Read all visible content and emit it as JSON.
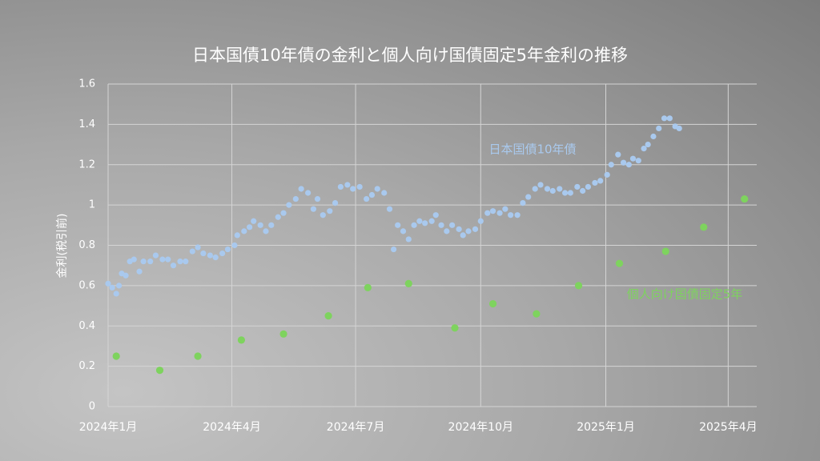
{
  "chart_data": {
    "type": "scatter",
    "title": "日本国債10年債の金利と個人向け国債固定5年金利の推移",
    "y_label": "金利(税引前)",
    "xlim": [
      0,
      477
    ],
    "ylim": [
      0,
      1.6
    ],
    "xticks": [
      {
        "value": 0,
        "label": "2024年1月"
      },
      {
        "value": 91,
        "label": "2024年4月"
      },
      {
        "value": 182,
        "label": "2024年7月"
      },
      {
        "value": 274,
        "label": "2024年10月"
      },
      {
        "value": 366,
        "label": "2025年1月"
      },
      {
        "value": 456,
        "label": "2025年4月"
      }
    ],
    "yticks": [
      0,
      0.2,
      0.4,
      0.6,
      0.8,
      1,
      1.2,
      1.4,
      1.6
    ],
    "grid": true,
    "series": [
      {
        "name": "日本国債10年債",
        "color": "#a9c9ee",
        "x": [
          0,
          3,
          6,
          8,
          10,
          13,
          16,
          19,
          23,
          26,
          31,
          35,
          40,
          44,
          48,
          53,
          57,
          62,
          66,
          70,
          75,
          79,
          84,
          88,
          93,
          95,
          100,
          104,
          107,
          112,
          116,
          120,
          125,
          129,
          133,
          138,
          142,
          147,
          151,
          154,
          158,
          163,
          167,
          171,
          176,
          180,
          185,
          190,
          194,
          198,
          203,
          207,
          210,
          213,
          217,
          221,
          225,
          229,
          233,
          238,
          241,
          245,
          249,
          253,
          258,
          261,
          265,
          270,
          274,
          279,
          283,
          288,
          292,
          296,
          301,
          305,
          309,
          314,
          318,
          323,
          327,
          332,
          336,
          340,
          345,
          349,
          353,
          358,
          362,
          367,
          370,
          375,
          379,
          383,
          386,
          390,
          394,
          397,
          401,
          405,
          409,
          413,
          417,
          420
        ],
        "values": [
          0.61,
          0.59,
          0.56,
          0.6,
          0.66,
          0.65,
          0.72,
          0.73,
          0.67,
          0.72,
          0.72,
          0.75,
          0.73,
          0.73,
          0.7,
          0.72,
          0.72,
          0.77,
          0.79,
          0.76,
          0.75,
          0.74,
          0.76,
          0.78,
          0.8,
          0.85,
          0.87,
          0.89,
          0.92,
          0.9,
          0.87,
          0.9,
          0.94,
          0.96,
          1,
          1.03,
          1.08,
          1.06,
          0.98,
          1.03,
          0.95,
          0.97,
          1.01,
          1.09,
          1.1,
          1.08,
          1.09,
          1.03,
          1.05,
          1.08,
          1.06,
          0.98,
          0.78,
          0.9,
          0.87,
          0.83,
          0.9,
          0.92,
          0.91,
          0.92,
          0.95,
          0.9,
          0.87,
          0.9,
          0.88,
          0.85,
          0.87,
          0.88,
          0.92,
          0.96,
          0.97,
          0.96,
          0.98,
          0.95,
          0.95,
          1.01,
          1.04,
          1.08,
          1.1,
          1.08,
          1.07,
          1.08,
          1.06,
          1.06,
          1.09,
          1.07,
          1.09,
          1.11,
          1.12,
          1.15,
          1.2,
          1.25,
          1.21,
          1.2,
          1.23,
          1.22,
          1.28,
          1.3,
          1.34,
          1.38,
          1.43,
          1.43,
          1.39,
          1.38
        ]
      },
      {
        "name": "個人向け国債固定5年",
        "color": "#7ed35e",
        "x": [
          6,
          38,
          66,
          98,
          129,
          162,
          191,
          221,
          255,
          283,
          315,
          346,
          376,
          410,
          438,
          468
        ],
        "values": [
          0.25,
          0.18,
          0.25,
          0.33,
          0.36,
          0.45,
          0.59,
          0.61,
          0.39,
          0.51,
          0.46,
          0.6,
          0.71,
          0.77,
          0.89,
          1.03
        ]
      }
    ]
  }
}
